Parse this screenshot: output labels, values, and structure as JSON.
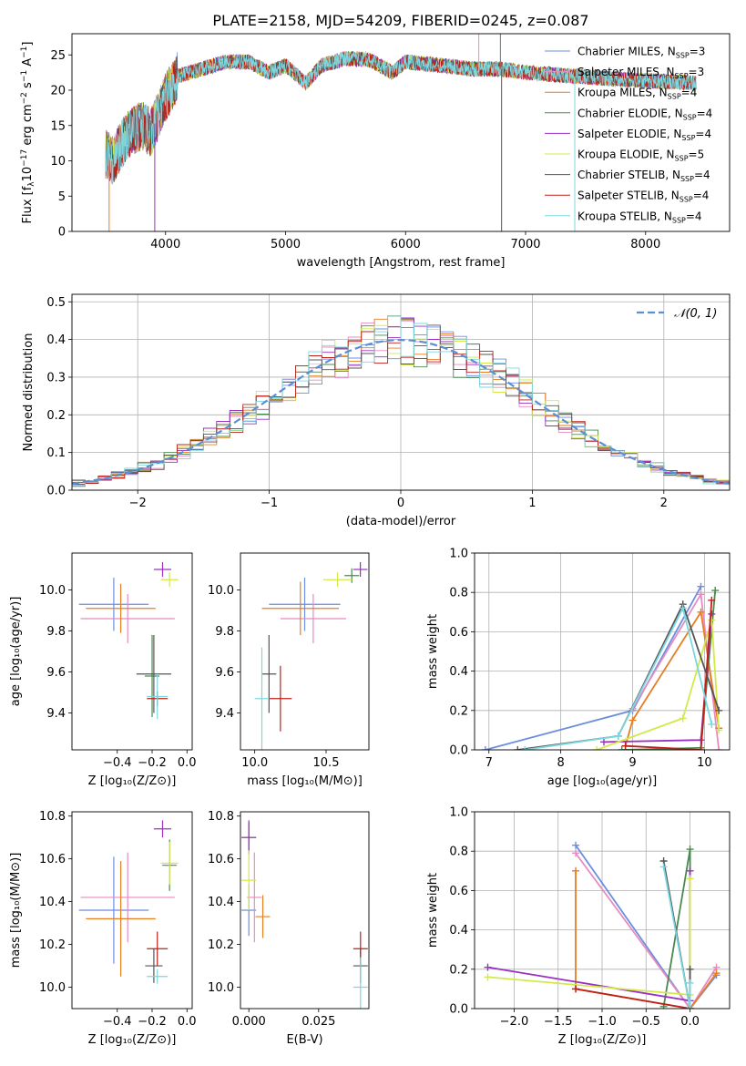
{
  "figure_title": "PLATE=2158, MJD=54209, FIBERID=0245, z=0.087",
  "colors": {
    "Chabrier MILES": "#6b8ee0",
    "Salpeter MILES": "#e88bc0",
    "Kroupa MILES": "#e67e22",
    "Chabrier ELODIE": "#4a8a50",
    "Salpeter ELODIE": "#9b30c0",
    "Kroupa ELODIE": "#d4e84a",
    "Chabrier STELIB": "#555555",
    "Salpeter STELIB": "#c0201a",
    "Kroupa STELIB": "#7ad8e0"
  },
  "chart_data": [
    {
      "id": "spectrum",
      "type": "line",
      "xlabel": "wavelength [Angstrom, rest frame]",
      "ylabel": "Flux [f_λ10^-17 erg cm^-2 s^-1 A^-1]",
      "xlim": [
        3220,
        8700
      ],
      "ylim": [
        0,
        28
      ],
      "xticks": [
        4000,
        5000,
        6000,
        7000,
        8000
      ],
      "yticks": [
        0,
        5,
        10,
        15,
        20,
        25
      ],
      "legend": "top-right",
      "series_legend": [
        {
          "name": "Chabrier MILES",
          "nssp": "3"
        },
        {
          "name": "Salpeter MILES",
          "nssp": "3"
        },
        {
          "name": "Kroupa MILES",
          "nssp": "4"
        },
        {
          "name": "Chabrier ELODIE",
          "nssp": "4"
        },
        {
          "name": "Salpeter ELODIE",
          "nssp": "4"
        },
        {
          "name": "Kroupa ELODIE",
          "nssp": "5"
        },
        {
          "name": "Chabrier STELIB",
          "nssp": "4"
        },
        {
          "name": "Salpeter STELIB",
          "nssp": "4"
        },
        {
          "name": "Kroupa STELIB",
          "nssp": "4"
        }
      ],
      "continuum": [
        [
          3500,
          11
        ],
        [
          3560,
          10
        ],
        [
          3620,
          12
        ],
        [
          3700,
          14
        ],
        [
          3800,
          15
        ],
        [
          3880,
          14
        ],
        [
          3950,
          17
        ],
        [
          4000,
          19
        ],
        [
          4100,
          22
        ],
        [
          4300,
          23
        ],
        [
          4500,
          24
        ],
        [
          4700,
          24
        ],
        [
          4860,
          22.5
        ],
        [
          5000,
          23.5
        ],
        [
          5170,
          21
        ],
        [
          5300,
          23.5
        ],
        [
          5500,
          24.5
        ],
        [
          5700,
          24.3
        ],
        [
          5890,
          22.5
        ],
        [
          6000,
          24
        ],
        [
          6300,
          23.5
        ],
        [
          6563,
          23
        ],
        [
          6800,
          23
        ],
        [
          7000,
          22.5
        ],
        [
          7400,
          22
        ],
        [
          7800,
          21.5
        ],
        [
          8200,
          21.2
        ],
        [
          8420,
          21
        ]
      ],
      "spikes": [
        {
          "x": 3530,
          "y": 0
        },
        {
          "x": 3910,
          "y": 0
        },
        {
          "x": 6800,
          "y": 0
        },
        {
          "x": 7410,
          "y": 0
        },
        {
          "x": 6610,
          "y": 28
        },
        {
          "x": 6790,
          "y": 28
        }
      ]
    },
    {
      "id": "residuals",
      "type": "histogram",
      "xlabel": "(data-model)/error",
      "ylabel": "Normed distribution",
      "xlim": [
        -2.5,
        2.5
      ],
      "ylim": [
        0,
        0.52
      ],
      "xticks": [
        -2,
        -1,
        0,
        1,
        2
      ],
      "yticks": [
        0.0,
        0.1,
        0.2,
        0.3,
        0.4,
        0.5
      ],
      "legend": "top-right",
      "legend_label": "𝒩(0, 1)",
      "bin_width": 0.1,
      "grid": true
    },
    {
      "id": "age_vs_Z",
      "type": "errorbar",
      "xlabel": "Z [log₁₀(Z/Z⊙)]",
      "ylabel": "age [log₁₀(age/yr)]",
      "xlim": [
        -0.66,
        0.03
      ],
      "ylim": [
        9.22,
        10.18
      ],
      "xticks": [
        -0.4,
        -0.2,
        0.0
      ],
      "yticks": [
        9.4,
        9.6,
        9.8,
        10.0
      ],
      "points": [
        {
          "model": "Chabrier MILES",
          "x": -0.42,
          "xerr": 0.2,
          "y": 9.93,
          "yerr": 0.13
        },
        {
          "model": "Salpeter MILES",
          "x": -0.34,
          "xerr": 0.27,
          "y": 9.86,
          "yerr": 0.12
        },
        {
          "model": "Kroupa MILES",
          "x": -0.38,
          "xerr": 0.2,
          "y": 9.91,
          "yerr": 0.12
        },
        {
          "model": "Chabrier ELODIE",
          "x": -0.2,
          "xerr": 0.0,
          "y": 9.58,
          "yerr": 0.2
        },
        {
          "model": "Salpeter ELODIE",
          "x": -0.14,
          "xerr": 0.05,
          "y": 10.1,
          "yerr": 0.0
        },
        {
          "model": "Kroupa ELODIE",
          "x": -0.1,
          "xerr": 0.05,
          "y": 10.05,
          "yerr": 0.0
        },
        {
          "model": "Chabrier STELIB",
          "x": -0.19,
          "xerr": 0.1,
          "y": 9.59,
          "yerr": 0.19
        },
        {
          "model": "Salpeter STELIB",
          "x": -0.17,
          "xerr": 0.06,
          "y": 9.47,
          "yerr": 0.0
        },
        {
          "model": "Kroupa STELIB",
          "x": -0.17,
          "xerr": 0.06,
          "y": 9.48,
          "yerr": 0.11
        }
      ]
    },
    {
      "id": "age_vs_mass",
      "type": "errorbar",
      "xlabel": "mass [log₁₀(M/M⊙)]",
      "ylabel": "",
      "xlim": [
        9.9,
        10.8
      ],
      "ylim": [
        9.22,
        10.18
      ],
      "xticks": [
        10.0,
        10.5
      ],
      "yticks": [
        9.4,
        9.6,
        9.8,
        10.0
      ],
      "points": [
        {
          "model": "Chabrier MILES",
          "x": 10.35,
          "xerr": 0.25,
          "y": 9.93,
          "yerr": 0.13
        },
        {
          "model": "Salpeter MILES",
          "x": 10.41,
          "xerr": 0.23,
          "y": 9.86,
          "yerr": 0.12
        },
        {
          "model": "Kroupa MILES",
          "x": 10.32,
          "xerr": 0.27,
          "y": 9.91,
          "yerr": 0.13
        },
        {
          "model": "Chabrier ELODIE",
          "x": 10.68,
          "xerr": 0.0,
          "y": 10.07,
          "yerr": 0.0
        },
        {
          "model": "Salpeter ELODIE",
          "x": 10.74,
          "xerr": 0.05,
          "y": 10.1,
          "yerr": 0.0
        },
        {
          "model": "Kroupa ELODIE",
          "x": 10.58,
          "xerr": 0.1,
          "y": 10.05,
          "yerr": 0.0
        },
        {
          "model": "Chabrier STELIB",
          "x": 10.1,
          "xerr": 0.0,
          "y": 9.59,
          "yerr": 0.19
        },
        {
          "model": "Salpeter STELIB",
          "x": 10.18,
          "xerr": 0.08,
          "y": 9.47,
          "yerr": 0.16
        },
        {
          "model": "Kroupa STELIB",
          "x": 10.05,
          "xerr": 0.05,
          "y": 9.47,
          "yerr": 0.25
        }
      ]
    },
    {
      "id": "weight_vs_age",
      "type": "line",
      "xlabel": "age [log₁₀(age/yr)]",
      "ylabel": "mass weight",
      "xlim": [
        6.8,
        10.35
      ],
      "ylim": [
        0,
        1
      ],
      "xticks": [
        7,
        8,
        9,
        10
      ],
      "yticks": [
        0.0,
        0.2,
        0.4,
        0.6,
        0.8,
        1.0
      ],
      "grid": true,
      "series": [
        {
          "model": "Chabrier MILES",
          "points": [
            [
              6.95,
              0.0
            ],
            [
              9.0,
              0.2
            ],
            [
              9.95,
              0.83
            ]
          ]
        },
        {
          "model": "Salpeter MILES",
          "points": [
            [
              9.0,
              0.21
            ],
            [
              9.95,
              0.79
            ],
            [
              10.2,
              0.0
            ]
          ]
        },
        {
          "model": "Kroupa MILES",
          "points": [
            [
              8.9,
              0.02
            ],
            [
              9.0,
              0.15
            ],
            [
              9.95,
              0.7
            ],
            [
              10.2,
              0.11
            ]
          ]
        },
        {
          "model": "Chabrier ELODIE",
          "points": [
            [
              8.85,
              0.0
            ],
            [
              9.95,
              0.01
            ],
            [
              10.15,
              0.81
            ]
          ]
        },
        {
          "model": "Salpeter ELODIE",
          "points": [
            [
              8.6,
              0.04
            ],
            [
              9.95,
              0.05
            ],
            [
              10.1,
              0.69
            ]
          ]
        },
        {
          "model": "Kroupa ELODIE",
          "points": [
            [
              8.5,
              0.0
            ],
            [
              9.7,
              0.16
            ],
            [
              10.1,
              0.66
            ],
            [
              10.2,
              0.1
            ]
          ]
        },
        {
          "model": "Chabrier STELIB",
          "points": [
            [
              7.4,
              0.0
            ],
            [
              8.8,
              0.07
            ],
            [
              9.7,
              0.74
            ],
            [
              10.2,
              0.2
            ]
          ]
        },
        {
          "model": "Salpeter STELIB",
          "points": [
            [
              8.9,
              0.02
            ],
            [
              9.95,
              0.0
            ],
            [
              10.1,
              0.76
            ]
          ]
        },
        {
          "model": "Kroupa STELIB",
          "points": [
            [
              7.5,
              0.0
            ],
            [
              8.8,
              0.07
            ],
            [
              9.7,
              0.72
            ],
            [
              10.1,
              0.13
            ]
          ]
        }
      ]
    },
    {
      "id": "mass_vs_Z",
      "type": "errorbar",
      "xlabel": "Z [log₁₀(Z/Z⊙)]",
      "ylabel": "mass [log₁₀(M/M⊙)]",
      "xlim": [
        -0.66,
        0.03
      ],
      "ylim": [
        9.9,
        10.82
      ],
      "xticks": [
        -0.4,
        -0.2,
        0.0
      ],
      "yticks": [
        10.0,
        10.2,
        10.4,
        10.6,
        10.8
      ],
      "points": [
        {
          "model": "Chabrier MILES",
          "x": -0.42,
          "xerr": 0.2,
          "y": 10.36,
          "yerr": 0.25
        },
        {
          "model": "Salpeter MILES",
          "x": -0.34,
          "xerr": 0.27,
          "y": 10.42,
          "yerr": 0.21
        },
        {
          "model": "Kroupa MILES",
          "x": -0.38,
          "xerr": 0.2,
          "y": 10.32,
          "yerr": 0.27
        },
        {
          "model": "Chabrier ELODIE",
          "x": -0.1,
          "xerr": 0.0,
          "y": 10.57,
          "yerr": 0.12
        },
        {
          "model": "Salpeter ELODIE",
          "x": -0.14,
          "xerr": 0.05,
          "y": 10.74,
          "yerr": 0.04
        },
        {
          "model": "Kroupa ELODIE",
          "x": -0.1,
          "xerr": 0.05,
          "y": 10.58,
          "yerr": 0.1
        },
        {
          "model": "Chabrier STELIB",
          "x": -0.19,
          "xerr": 0.05,
          "y": 10.1,
          "yerr": 0.08
        },
        {
          "model": "Salpeter STELIB",
          "x": -0.17,
          "xerr": 0.06,
          "y": 10.18,
          "yerr": 0.08
        },
        {
          "model": "Kroupa STELIB",
          "x": -0.17,
          "xerr": 0.06,
          "y": 10.05,
          "yerr": 0.0
        }
      ]
    },
    {
      "id": "mass_vs_EBV",
      "type": "errorbar",
      "xlabel": "E(B-V)",
      "ylabel": "",
      "xlim": [
        -0.003,
        0.043
      ],
      "ylim": [
        9.9,
        10.82
      ],
      "xticks": [
        0.0,
        0.025
      ],
      "xticklabels": [
        "0.000",
        "0.025"
      ],
      "yticks": [
        10.0,
        10.2,
        10.4,
        10.6,
        10.8
      ],
      "points": [
        {
          "model": "Chabrier MILES",
          "x": 0.0,
          "y": 10.36,
          "yerr": 0.12
        },
        {
          "model": "Salpeter MILES",
          "x": 0.002,
          "y": 10.42,
          "yerr": 0.21
        },
        {
          "model": "Kroupa MILES",
          "x": 0.005,
          "y": 10.33,
          "yerr": 0.1
        },
        {
          "model": "Chabrier ELODIE",
          "x": 0.0,
          "y": 10.7,
          "yerr": 0.07
        },
        {
          "model": "Salpeter ELODIE",
          "x": 0.0,
          "y": 10.7,
          "yerr": 0.08
        },
        {
          "model": "Kroupa ELODIE",
          "x": 0.0,
          "y": 10.5,
          "yerr": 0.14
        },
        {
          "model": "Chabrier STELIB",
          "x": 0.04,
          "y": 10.1,
          "yerr": 0.08
        },
        {
          "model": "Salpeter STELIB",
          "x": 0.04,
          "y": 10.18,
          "yerr": 0.08
        },
        {
          "model": "Kroupa STELIB",
          "x": 0.04,
          "y": 10.0,
          "yerr": 0.14
        }
      ]
    },
    {
      "id": "weight_vs_Z",
      "type": "line",
      "xlabel": "Z [log₁₀(Z/Z⊙)]",
      "ylabel": "mass weight",
      "xlim": [
        -2.45,
        0.45
      ],
      "ylim": [
        0,
        1
      ],
      "xticks": [
        -2.0,
        -1.5,
        -1.0,
        -0.5,
        0.0
      ],
      "yticks": [
        0.0,
        0.2,
        0.4,
        0.6,
        0.8,
        1.0
      ],
      "grid": true,
      "series": [
        {
          "model": "Chabrier MILES",
          "points": [
            [
              -1.3,
              0.83
            ],
            [
              0.0,
              0.0
            ],
            [
              0.3,
              0.17
            ]
          ]
        },
        {
          "model": "Salpeter MILES",
          "points": [
            [
              -1.3,
              0.79
            ],
            [
              0.0,
              0.0
            ],
            [
              0.3,
              0.21
            ]
          ]
        },
        {
          "model": "Kroupa MILES",
          "points": [
            [
              -1.3,
              0.7
            ],
            [
              -1.3,
              0.1
            ],
            [
              0.0,
              0.0
            ],
            [
              0.3,
              0.18
            ]
          ]
        },
        {
          "model": "Chabrier ELODIE",
          "points": [
            [
              -0.3,
              0.01
            ],
            [
              0.0,
              0.81
            ],
            [
              0.0,
              0.0
            ]
          ]
        },
        {
          "model": "Salpeter ELODIE",
          "points": [
            [
              -2.3,
              0.21
            ],
            [
              0.0,
              0.04
            ],
            [
              0.0,
              0.7
            ]
          ]
        },
        {
          "model": "Kroupa ELODIE",
          "points": [
            [
              -2.3,
              0.16
            ],
            [
              0.0,
              0.07
            ],
            [
              0.0,
              0.66
            ]
          ]
        },
        {
          "model": "Chabrier STELIB",
          "points": [
            [
              -0.3,
              0.75
            ],
            [
              0.0,
              0.0
            ],
            [
              0.0,
              0.2
            ]
          ]
        },
        {
          "model": "Salpeter STELIB",
          "points": [
            [
              -1.3,
              0.1
            ],
            [
              0.0,
              0.0
            ]
          ]
        },
        {
          "model": "Kroupa STELIB",
          "points": [
            [
              -0.3,
              0.72
            ],
            [
              0.0,
              0.0
            ],
            [
              0.0,
              0.13
            ]
          ]
        }
      ]
    }
  ]
}
